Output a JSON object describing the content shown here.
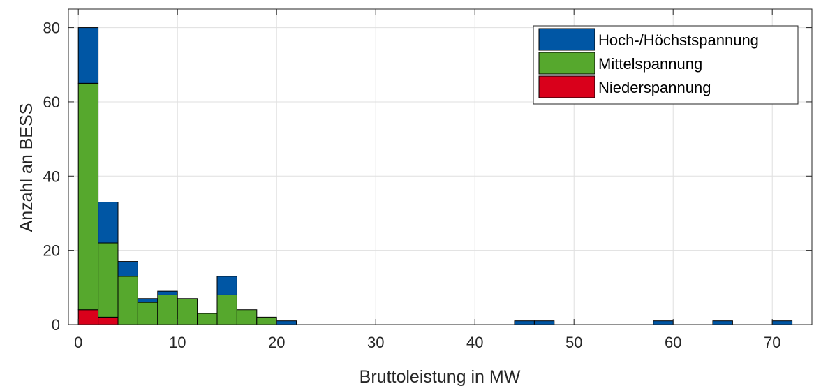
{
  "chart_data": {
    "type": "bar",
    "stacked": true,
    "bin_width": 2,
    "x_bin_starts": [
      0,
      2,
      4,
      6,
      8,
      10,
      12,
      14,
      16,
      18,
      20,
      44,
      46,
      58,
      64,
      70
    ],
    "series": [
      {
        "name": "Niederspannung",
        "values": [
          4,
          2,
          0,
          0,
          0,
          0,
          0,
          0,
          0,
          0,
          0,
          0,
          0,
          0,
          0,
          0
        ]
      },
      {
        "name": "Mittelspannung",
        "values": [
          61,
          20,
          13,
          6,
          8,
          7,
          3,
          8,
          4,
          2,
          0,
          0,
          0,
          0,
          0,
          0
        ]
      },
      {
        "name": "Hoch-/Höchstspannung",
        "values": [
          15,
          11,
          4,
          1,
          1,
          0,
          0,
          5,
          0,
          0,
          1,
          1,
          1,
          1,
          1,
          1
        ]
      }
    ],
    "totals": [
      80,
      33,
      17,
      7,
      9,
      7,
      3,
      13,
      4,
      2,
      1,
      1,
      1,
      1,
      1,
      1
    ],
    "xlabel": "Bruttoleistung in MW",
    "ylabel": "Anzahl an BESS",
    "xlim": [
      -1,
      74
    ],
    "ylim": [
      0,
      85
    ],
    "xticks": [
      0,
      10,
      20,
      30,
      40,
      50,
      60,
      70
    ],
    "yticks": [
      0,
      20,
      40,
      60,
      80
    ],
    "grid": true,
    "legend_position": "top-right",
    "legend_order": [
      "Hoch-/Höchstspannung",
      "Mittelspannung",
      "Niederspannung"
    ],
    "colors": {
      "Hoch-/Höchstspannung": "#0056a4",
      "Mittelspannung": "#56a82d",
      "Niederspannung": "#d9001b",
      "grid": "#dfdfdf",
      "axis": "#262626"
    }
  }
}
